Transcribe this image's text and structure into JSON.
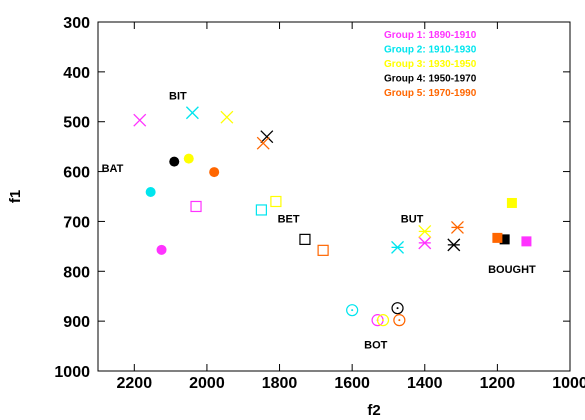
{
  "chart_data": {
    "type": "scatter",
    "title": "",
    "xlabel": "f2",
    "ylabel": "f1",
    "xlim": [
      2300,
      1000
    ],
    "ylim": [
      300,
      1000
    ],
    "x_reversed": true,
    "y_reversed": true,
    "x_ticks": [
      2200,
      2000,
      1800,
      1600,
      1400,
      1200,
      1000
    ],
    "y_ticks": [
      300,
      400,
      500,
      600,
      700,
      800,
      900,
      1000
    ],
    "grid": false,
    "legend_position": "top-right",
    "series": [
      {
        "name": "Group 1: 1890-1910",
        "color": "#ff33ff",
        "points": [
          {
            "x": 2185,
            "y": 497,
            "vowel": "BIT",
            "marker": "x"
          },
          {
            "x": 2125,
            "y": 757,
            "vowel": "BAT",
            "marker": "filled-circle"
          },
          {
            "x": 2030,
            "y": 670,
            "vowel": "BET",
            "marker": "open-square"
          },
          {
            "x": 1400,
            "y": 743,
            "vowel": "BUT",
            "marker": "asterisk"
          },
          {
            "x": 1120,
            "y": 740,
            "vowel": "BOUGHT",
            "marker": "filled-square"
          },
          {
            "x": 1530,
            "y": 898,
            "vowel": "BOT",
            "marker": "dotted-circle"
          }
        ]
      },
      {
        "name": "Group 2: 1910-1930",
        "color": "#00e5ee",
        "points": [
          {
            "x": 2040,
            "y": 482,
            "vowel": "BIT",
            "marker": "x"
          },
          {
            "x": 2155,
            "y": 641,
            "vowel": "BAT",
            "marker": "filled-circle"
          },
          {
            "x": 1850,
            "y": 677,
            "vowel": "BET",
            "marker": "open-square"
          },
          {
            "x": 1475,
            "y": 752,
            "vowel": "BUT",
            "marker": "asterisk"
          },
          {
            "x": 1600,
            "y": 878,
            "vowel": "BOT",
            "marker": "dotted-circle"
          }
        ]
      },
      {
        "name": "Group 3: 1930-1950",
        "color": "#ffff00",
        "points": [
          {
            "x": 1945,
            "y": 491,
            "vowel": "BIT",
            "marker": "x"
          },
          {
            "x": 2050,
            "y": 574,
            "vowel": "BAT",
            "marker": "filled-circle"
          },
          {
            "x": 1810,
            "y": 660,
            "vowel": "BET",
            "marker": "open-square"
          },
          {
            "x": 1400,
            "y": 720,
            "vowel": "BUT",
            "marker": "asterisk"
          },
          {
            "x": 1160,
            "y": 663,
            "vowel": "BOUGHT",
            "marker": "filled-square"
          },
          {
            "x": 1515,
            "y": 898,
            "vowel": "BOT",
            "marker": "dotted-circle"
          }
        ]
      },
      {
        "name": "Group 4: 1950-1970",
        "color": "#000000",
        "points": [
          {
            "x": 1835,
            "y": 530,
            "vowel": "BIT",
            "marker": "x"
          },
          {
            "x": 2090,
            "y": 580,
            "vowel": "BAT",
            "marker": "filled-circle"
          },
          {
            "x": 1730,
            "y": 736,
            "vowel": "BET",
            "marker": "open-square"
          },
          {
            "x": 1320,
            "y": 747,
            "vowel": "BUT",
            "marker": "asterisk"
          },
          {
            "x": 1180,
            "y": 736,
            "vowel": "BOUGHT",
            "marker": "filled-square"
          },
          {
            "x": 1475,
            "y": 874,
            "vowel": "BOT",
            "marker": "dotted-circle"
          }
        ]
      },
      {
        "name": "Group 5: 1970-1990",
        "color": "#ff6600",
        "points": [
          {
            "x": 1845,
            "y": 543,
            "vowel": "BIT",
            "marker": "x"
          },
          {
            "x": 1980,
            "y": 601,
            "vowel": "BAT",
            "marker": "filled-circle"
          },
          {
            "x": 1680,
            "y": 758,
            "vowel": "BET",
            "marker": "open-square"
          },
          {
            "x": 1310,
            "y": 712,
            "vowel": "BUT",
            "marker": "asterisk"
          },
          {
            "x": 1200,
            "y": 733,
            "vowel": "BOUGHT",
            "marker": "filled-square"
          },
          {
            "x": 1470,
            "y": 898,
            "vowel": "BOT",
            "marker": "dotted-circle"
          }
        ]
      }
    ],
    "annotations": [
      {
        "text": "BIT",
        "x": 2080,
        "y": 455
      },
      {
        "text": "BAT",
        "x": 2260,
        "y": 601
      },
      {
        "text": "BET",
        "x": 1775,
        "y": 702
      },
      {
        "text": "BUT",
        "x": 1435,
        "y": 702
      },
      {
        "text": "BOUGHT",
        "x": 1160,
        "y": 803
      },
      {
        "text": "BOT",
        "x": 1535,
        "y": 955
      }
    ]
  }
}
